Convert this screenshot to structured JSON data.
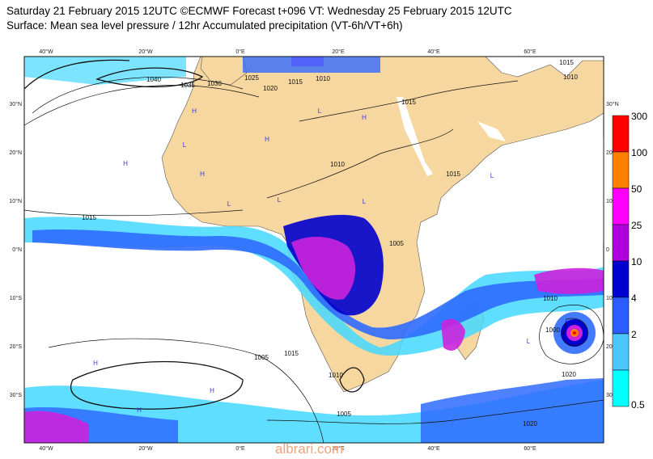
{
  "header": {
    "line1": "Saturday 21 February 2015 12UTC ©ECMWF Forecast t+096 VT: Wednesday 25 February 2015 12UTC",
    "line2": "Surface: Mean sea level pressure / 12hr Accumulated precipitation (VT-6h/VT+6h)"
  },
  "axes": {
    "top_lon": [
      "40°W",
      "20°W",
      "0°E",
      "20°E",
      "40°E",
      "60°E"
    ],
    "bottom_lon": [
      "40°W",
      "20°W",
      "0°E",
      "20°E",
      "40°E",
      "60°E"
    ],
    "left_lat": [
      "30°N",
      "20°N",
      "10°N",
      "0°N",
      "10°S",
      "20°S",
      "30°S"
    ],
    "right_lat": [
      "30°N",
      "20",
      "10",
      "0",
      "10",
      "20",
      "30"
    ]
  },
  "isobars": [
    "1040",
    "1035",
    "1030",
    "1025",
    "1020",
    "1015",
    "1010",
    "1015",
    "1010",
    "1015",
    "1005",
    "1010",
    "1015",
    "1005",
    "1005",
    "1010",
    "1000",
    "1020",
    "1020",
    "1015",
    "1010",
    "1015"
  ],
  "pressure_centers": [
    "H",
    "H",
    "H",
    "H",
    "H",
    "H",
    "H",
    "H",
    "L",
    "L",
    "L",
    "L",
    "L",
    "L",
    "L"
  ],
  "colorbar": {
    "labels": [
      "300",
      "100",
      "50",
      "25",
      "10",
      "4",
      "2",
      "0.5"
    ],
    "colors": [
      "#ff0000",
      "#ff7f00",
      "#ff00ff",
      "#b000e0",
      "#0000d0",
      "#2a5cff",
      "#4dc8ff",
      "#00ffff"
    ]
  },
  "colors": {
    "land": "#f7d7a0",
    "ocean": "#ffffff",
    "isobar": "#111111",
    "precip_light": "#44d8ff",
    "precip_mid": "#2f6bff",
    "precip_heavy": "#0000cc",
    "precip_magenta": "#cc22dd"
  },
  "watermark": "albrari.com"
}
